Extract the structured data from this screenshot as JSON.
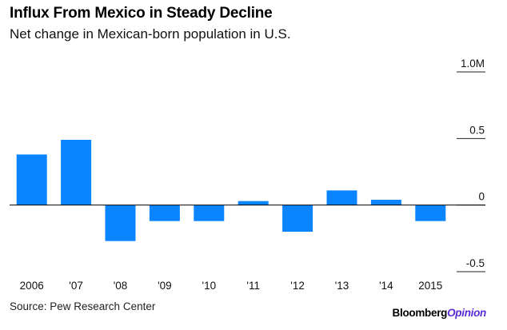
{
  "chart_data": {
    "type": "bar",
    "title": "Influx From Mexico in Steady Decline",
    "subtitle": "Net change in Mexican-born population in U.S.",
    "xlabel": "",
    "ylabel": "",
    "categories": [
      "2006",
      "'07",
      "'08",
      "'09",
      "'10",
      "'11",
      "'12",
      "'13",
      "'14",
      "2015"
    ],
    "values": [
      0.38,
      0.49,
      -0.27,
      -0.12,
      -0.12,
      0.03,
      -0.2,
      0.11,
      0.04,
      -0.12
    ],
    "ylim": [
      -0.5,
      1.0
    ],
    "yticks": [
      1.0,
      0.5,
      0,
      -0.5
    ],
    "ytick_labels": [
      "1.0M",
      "0.5",
      "0",
      "-0.5"
    ],
    "bar_color": "#0a84ff",
    "grid": false,
    "legend": "none"
  },
  "source": "Source: Pew Research Center",
  "brand": {
    "part1": "Bloomberg",
    "part2": "Opinion",
    "accent": "#5b2bd6"
  }
}
